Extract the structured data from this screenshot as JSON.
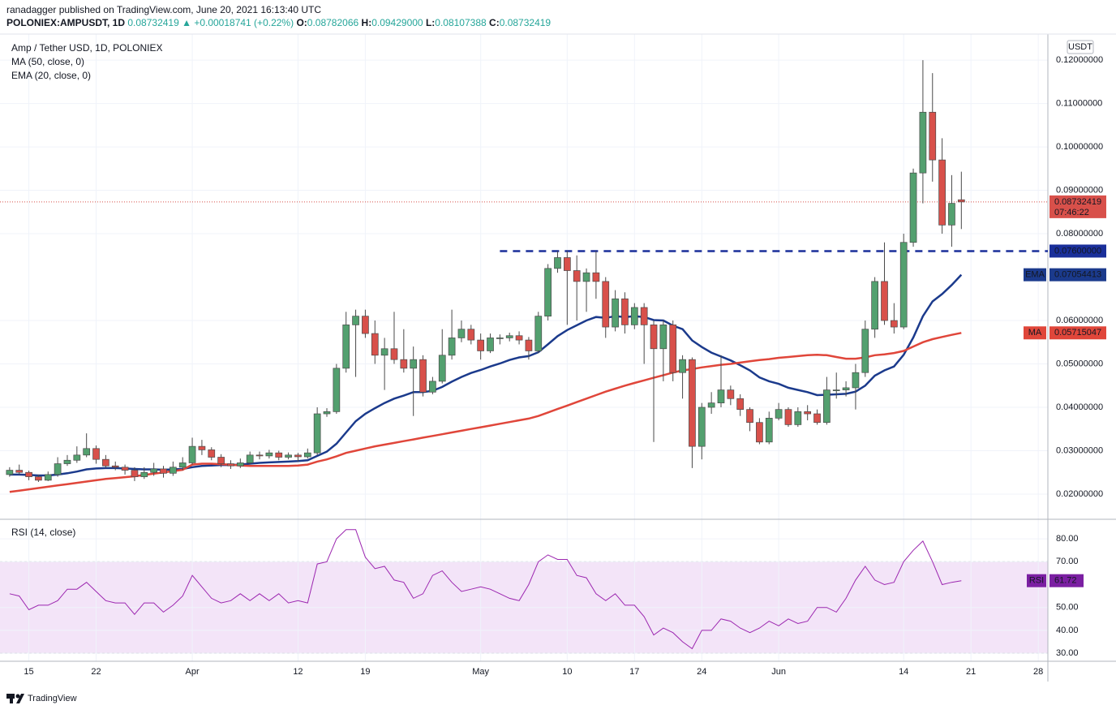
{
  "header": {
    "publisher": "ranadagger published on TradingView.com, June 20, 2021 16:13:40 UTC",
    "symbol": "POLONIEX:AMPUSDT, 1D",
    "last": "0.08732419",
    "change": "▲ +0.00018741 (+0.22%)",
    "ohlc": [
      "O:",
      "0.08782066",
      "H:",
      "0.09429000",
      "L:",
      "0.08107388",
      "C:",
      "0.08732419"
    ]
  },
  "footer": "TradingView",
  "chart_data": {
    "type": "candlestick",
    "title": "Amp / Tether USD, 1D, POLONIEX",
    "axis_unit": "USDT",
    "up_color": "#53a06f",
    "down_color": "#d8504a",
    "xlim": [
      "2021-03-12",
      "2021-06-29"
    ],
    "ylim": [
      0.0142,
      0.126
    ],
    "yticks": [
      {
        "value": 0.02,
        "label": "0.02000000"
      },
      {
        "value": 0.03,
        "label": "0.03000000"
      },
      {
        "value": 0.04,
        "label": "0.04000000"
      },
      {
        "value": 0.05,
        "label": "0.05000000"
      },
      {
        "value": 0.06,
        "label": "0.06000000"
      },
      {
        "value": 0.08,
        "label": "0.08000000"
      },
      {
        "value": 0.09,
        "label": "0.09000000"
      },
      {
        "value": 0.1,
        "label": "0.10000000"
      },
      {
        "value": 0.11,
        "label": "0.11000000"
      },
      {
        "value": 0.12,
        "label": "0.12000000"
      }
    ],
    "xticks": [
      {
        "value": "2021-03-15",
        "label": "15"
      },
      {
        "value": "2021-03-22",
        "label": "22"
      },
      {
        "value": "2021-04-01",
        "label": "Apr"
      },
      {
        "value": "2021-04-12",
        "label": "12"
      },
      {
        "value": "2021-04-19",
        "label": "19"
      },
      {
        "value": "2021-05-01",
        "label": "May"
      },
      {
        "value": "2021-05-10",
        "label": "10"
      },
      {
        "value": "2021-05-17",
        "label": "17"
      },
      {
        "value": "2021-05-24",
        "label": "24"
      },
      {
        "value": "2021-06-01",
        "label": "Jun"
      },
      {
        "value": "2021-06-14",
        "label": "14"
      },
      {
        "value": "2021-06-21",
        "label": "21"
      },
      {
        "value": "2021-06-28",
        "label": "28"
      }
    ],
    "grid": true,
    "countdown": "07:46:22",
    "level": {
      "value": 0.076,
      "label": "0.07600000",
      "start": "2021-05-03",
      "color": "#1a2f9a"
    },
    "dates": [
      "2021-03-13",
      "2021-03-14",
      "2021-03-15",
      "2021-03-16",
      "2021-03-17",
      "2021-03-18",
      "2021-03-19",
      "2021-03-20",
      "2021-03-21",
      "2021-03-22",
      "2021-03-23",
      "2021-03-24",
      "2021-03-25",
      "2021-03-26",
      "2021-03-27",
      "2021-03-28",
      "2021-03-29",
      "2021-03-30",
      "2021-03-31",
      "2021-04-01",
      "2021-04-02",
      "2021-04-03",
      "2021-04-04",
      "2021-04-05",
      "2021-04-06",
      "2021-04-07",
      "2021-04-08",
      "2021-04-09",
      "2021-04-10",
      "2021-04-11",
      "2021-04-12",
      "2021-04-13",
      "2021-04-14",
      "2021-04-15",
      "2021-04-16",
      "2021-04-17",
      "2021-04-18",
      "2021-04-19",
      "2021-04-20",
      "2021-04-21",
      "2021-04-22",
      "2021-04-23",
      "2021-04-24",
      "2021-04-25",
      "2021-04-26",
      "2021-04-27",
      "2021-04-28",
      "2021-04-29",
      "2021-04-30",
      "2021-05-01",
      "2021-05-02",
      "2021-05-03",
      "2021-05-04",
      "2021-05-05",
      "2021-05-06",
      "2021-05-07",
      "2021-05-08",
      "2021-05-09",
      "2021-05-10",
      "2021-05-11",
      "2021-05-12",
      "2021-05-13",
      "2021-05-14",
      "2021-05-15",
      "2021-05-16",
      "2021-05-17",
      "2021-05-18",
      "2021-05-19",
      "2021-05-20",
      "2021-05-21",
      "2021-05-22",
      "2021-05-23",
      "2021-05-24",
      "2021-05-25",
      "2021-05-26",
      "2021-05-27",
      "2021-05-28",
      "2021-05-29",
      "2021-05-30",
      "2021-05-31",
      "2021-06-01",
      "2021-06-02",
      "2021-06-03",
      "2021-06-04",
      "2021-06-05",
      "2021-06-06",
      "2021-06-07",
      "2021-06-08",
      "2021-06-09",
      "2021-06-10",
      "2021-06-11",
      "2021-06-12",
      "2021-06-13",
      "2021-06-14",
      "2021-06-15",
      "2021-06-16",
      "2021-06-17",
      "2021-06-18",
      "2021-06-19",
      "2021-06-20"
    ],
    "candles": [
      [
        0.0245,
        0.0262,
        0.024,
        0.0255
      ],
      [
        0.0255,
        0.0268,
        0.0245,
        0.025
      ],
      [
        0.025,
        0.0254,
        0.0232,
        0.024
      ],
      [
        0.024,
        0.0245,
        0.0228,
        0.0232
      ],
      [
        0.0232,
        0.0252,
        0.023,
        0.0245
      ],
      [
        0.0245,
        0.0285,
        0.024,
        0.027
      ],
      [
        0.027,
        0.029,
        0.0265,
        0.0278
      ],
      [
        0.0278,
        0.031,
        0.0272,
        0.029
      ],
      [
        0.029,
        0.034,
        0.0285,
        0.0305
      ],
      [
        0.0305,
        0.0312,
        0.027,
        0.028
      ],
      [
        0.028,
        0.029,
        0.026,
        0.0265
      ],
      [
        0.0265,
        0.0275,
        0.0255,
        0.0262
      ],
      [
        0.0262,
        0.0268,
        0.0245,
        0.0255
      ],
      [
        0.0255,
        0.0262,
        0.023,
        0.024
      ],
      [
        0.024,
        0.0262,
        0.0235,
        0.025
      ],
      [
        0.025,
        0.0272,
        0.0242,
        0.0258
      ],
      [
        0.0258,
        0.0265,
        0.0238,
        0.0248
      ],
      [
        0.0248,
        0.0275,
        0.0242,
        0.0262
      ],
      [
        0.0262,
        0.0285,
        0.0255,
        0.0272
      ],
      [
        0.0272,
        0.033,
        0.0268,
        0.031
      ],
      [
        0.031,
        0.0325,
        0.029,
        0.0302
      ],
      [
        0.0302,
        0.0308,
        0.0278,
        0.0285
      ],
      [
        0.0285,
        0.0292,
        0.0262,
        0.027
      ],
      [
        0.027,
        0.0278,
        0.0258,
        0.0265
      ],
      [
        0.0265,
        0.0282,
        0.026,
        0.0272
      ],
      [
        0.0272,
        0.0298,
        0.0268,
        0.029
      ],
      [
        0.029,
        0.0298,
        0.028,
        0.0288
      ],
      [
        0.0288,
        0.0302,
        0.0282,
        0.0295
      ],
      [
        0.0295,
        0.03,
        0.0278,
        0.0285
      ],
      [
        0.0285,
        0.0296,
        0.028,
        0.029
      ],
      [
        0.029,
        0.0295,
        0.0275,
        0.0286
      ],
      [
        0.0286,
        0.0305,
        0.0282,
        0.0295
      ],
      [
        0.0295,
        0.04,
        0.029,
        0.0385
      ],
      [
        0.0385,
        0.0398,
        0.0378,
        0.039
      ],
      [
        0.039,
        0.05,
        0.0385,
        0.049
      ],
      [
        0.049,
        0.062,
        0.048,
        0.059
      ],
      [
        0.059,
        0.0625,
        0.047,
        0.061
      ],
      [
        0.061,
        0.0625,
        0.056,
        0.057
      ],
      [
        0.057,
        0.06,
        0.05,
        0.052
      ],
      [
        0.052,
        0.056,
        0.044,
        0.0535
      ],
      [
        0.0535,
        0.062,
        0.05,
        0.051
      ],
      [
        0.051,
        0.058,
        0.048,
        0.049
      ],
      [
        0.049,
        0.054,
        0.038,
        0.051
      ],
      [
        0.051,
        0.052,
        0.0425,
        0.0435
      ],
      [
        0.0435,
        0.047,
        0.043,
        0.046
      ],
      [
        0.046,
        0.058,
        0.0455,
        0.052
      ],
      [
        0.052,
        0.0625,
        0.051,
        0.056
      ],
      [
        0.056,
        0.06,
        0.055,
        0.058
      ],
      [
        0.058,
        0.059,
        0.0545,
        0.0555
      ],
      [
        0.0555,
        0.057,
        0.051,
        0.053
      ],
      [
        0.053,
        0.057,
        0.0525,
        0.056
      ],
      [
        0.056,
        0.0568,
        0.0545,
        0.056
      ],
      [
        0.056,
        0.0572,
        0.0552,
        0.0565
      ],
      [
        0.0565,
        0.0575,
        0.0545,
        0.0555
      ],
      [
        0.0555,
        0.0562,
        0.051,
        0.053
      ],
      [
        0.053,
        0.062,
        0.0525,
        0.061
      ],
      [
        0.061,
        0.073,
        0.06,
        0.072
      ],
      [
        0.072,
        0.076,
        0.071,
        0.0745
      ],
      [
        0.0745,
        0.076,
        0.059,
        0.0715
      ],
      [
        0.0715,
        0.075,
        0.06,
        0.069
      ],
      [
        0.069,
        0.072,
        0.062,
        0.071
      ],
      [
        0.071,
        0.076,
        0.065,
        0.069
      ],
      [
        0.069,
        0.07,
        0.056,
        0.0585
      ],
      [
        0.0585,
        0.067,
        0.0575,
        0.065
      ],
      [
        0.065,
        0.0665,
        0.057,
        0.059
      ],
      [
        0.059,
        0.064,
        0.058,
        0.063
      ],
      [
        0.063,
        0.064,
        0.05,
        0.059
      ],
      [
        0.059,
        0.06,
        0.032,
        0.0535
      ],
      [
        0.0535,
        0.06,
        0.046,
        0.059
      ],
      [
        0.059,
        0.06,
        0.046,
        0.048
      ],
      [
        0.048,
        0.052,
        0.042,
        0.051
      ],
      [
        0.051,
        0.0515,
        0.026,
        0.031
      ],
      [
        0.031,
        0.041,
        0.028,
        0.04
      ],
      [
        0.04,
        0.0435,
        0.0385,
        0.041
      ],
      [
        0.041,
        0.052,
        0.04,
        0.044
      ],
      [
        0.044,
        0.045,
        0.0405,
        0.042
      ],
      [
        0.042,
        0.043,
        0.038,
        0.0395
      ],
      [
        0.0395,
        0.04,
        0.0345,
        0.0365
      ],
      [
        0.0365,
        0.0375,
        0.0315,
        0.032
      ],
      [
        0.032,
        0.039,
        0.0315,
        0.0375
      ],
      [
        0.0375,
        0.041,
        0.037,
        0.0395
      ],
      [
        0.0395,
        0.04,
        0.0355,
        0.036
      ],
      [
        0.036,
        0.04,
        0.0355,
        0.039
      ],
      [
        0.039,
        0.0405,
        0.037,
        0.0385
      ],
      [
        0.0385,
        0.0395,
        0.036,
        0.0365
      ],
      [
        0.0365,
        0.047,
        0.036,
        0.044
      ],
      [
        0.044,
        0.048,
        0.042,
        0.044
      ],
      [
        0.044,
        0.046,
        0.0425,
        0.0445
      ],
      [
        0.0445,
        0.05,
        0.0395,
        0.048
      ],
      [
        0.048,
        0.06,
        0.047,
        0.058
      ],
      [
        0.058,
        0.07,
        0.056,
        0.069
      ],
      [
        0.069,
        0.078,
        0.059,
        0.06
      ],
      [
        0.06,
        0.064,
        0.057,
        0.0585
      ],
      [
        0.0585,
        0.08,
        0.058,
        0.078
      ],
      [
        0.078,
        0.095,
        0.077,
        0.094
      ],
      [
        0.094,
        0.12,
        0.087,
        0.108
      ],
      [
        0.108,
        0.117,
        0.092,
        0.097
      ],
      [
        0.097,
        0.102,
        0.08,
        0.082
      ],
      [
        0.082,
        0.0935,
        0.077,
        0.087
      ],
      [
        0.08782066,
        0.09429,
        0.08107388,
        0.08732419
      ]
    ],
    "series": [
      {
        "name": "EMA",
        "legend": "EMA (20, close, 0)",
        "color": "#1b3a8c",
        "values": [
          0.0245,
          0.0245,
          0.0244,
          0.0243,
          0.0243,
          0.0245,
          0.0248,
          0.0252,
          0.0257,
          0.0259,
          0.026,
          0.026,
          0.0259,
          0.0258,
          0.0257,
          0.0257,
          0.0256,
          0.0257,
          0.0258,
          0.0262,
          0.0265,
          0.0266,
          0.0267,
          0.0267,
          0.0268,
          0.027,
          0.0272,
          0.0273,
          0.0274,
          0.0275,
          0.0276,
          0.0278,
          0.0288,
          0.0298,
          0.0316,
          0.0342,
          0.0368,
          0.0385,
          0.0398,
          0.041,
          0.042,
          0.0427,
          0.0435,
          0.0435,
          0.0438,
          0.0447,
          0.0459,
          0.047,
          0.0479,
          0.0486,
          0.0494,
          0.0501,
          0.0509,
          0.0515,
          0.0518,
          0.0527,
          0.0545,
          0.0564,
          0.0578,
          0.0589,
          0.06,
          0.0608,
          0.0606,
          0.061,
          0.0608,
          0.061,
          0.0608,
          0.0601,
          0.06,
          0.0588,
          0.058,
          0.0554,
          0.0539,
          0.0526,
          0.0517,
          0.0508,
          0.0497,
          0.0485,
          0.0469,
          0.046,
          0.0454,
          0.0445,
          0.044,
          0.0435,
          0.0428,
          0.0429,
          0.043,
          0.0431,
          0.0436,
          0.045,
          0.0473,
          0.0485,
          0.0494,
          0.0521,
          0.0561,
          0.061,
          0.0644,
          0.0661,
          0.0682,
          0.07054413
        ]
      },
      {
        "name": "MA",
        "legend": "MA (50, close, 0)",
        "color": "#e0463a",
        "values": [
          0.0205,
          0.0208,
          0.0211,
          0.0214,
          0.0217,
          0.022,
          0.0223,
          0.0226,
          0.0229,
          0.0232,
          0.0235,
          0.0237,
          0.0239,
          0.0241,
          0.0244,
          0.0247,
          0.025,
          0.0253,
          0.0256,
          0.0268,
          0.027,
          0.027,
          0.0269,
          0.0268,
          0.0266,
          0.0265,
          0.0265,
          0.0265,
          0.0265,
          0.0265,
          0.0266,
          0.0268,
          0.0275,
          0.028,
          0.0287,
          0.0295,
          0.03,
          0.0305,
          0.031,
          0.0314,
          0.0318,
          0.0322,
          0.0326,
          0.033,
          0.0334,
          0.0338,
          0.0342,
          0.0346,
          0.035,
          0.0354,
          0.0358,
          0.0362,
          0.0366,
          0.037,
          0.0374,
          0.038,
          0.0388,
          0.0396,
          0.0404,
          0.0412,
          0.042,
          0.0428,
          0.0436,
          0.0443,
          0.045,
          0.0456,
          0.0462,
          0.0468,
          0.0474,
          0.048,
          0.0485,
          0.0488,
          0.0492,
          0.0495,
          0.0498,
          0.05,
          0.0503,
          0.0506,
          0.0509,
          0.0511,
          0.0514,
          0.0516,
          0.0518,
          0.052,
          0.0521,
          0.052,
          0.0516,
          0.0512,
          0.0512,
          0.0515,
          0.052,
          0.0522,
          0.0525,
          0.053,
          0.054,
          0.055,
          0.0557,
          0.0562,
          0.0567,
          0.05715047
        ]
      }
    ],
    "rsi": {
      "title": "RSI (14, close)",
      "name": "RSI",
      "color": "#9c27b0",
      "band": [
        30,
        70
      ],
      "band_color": "#f3e4f8",
      "ylim": [
        26.5,
        88.2
      ],
      "yticks": [
        {
          "value": 30,
          "label": "30.00"
        },
        {
          "value": 40,
          "label": "40.00"
        },
        {
          "value": 50,
          "label": "50.00"
        },
        {
          "value": 70,
          "label": "70.00"
        },
        {
          "value": 80,
          "label": "80.00"
        }
      ],
      "values": [
        56,
        55,
        49,
        51,
        51,
        53,
        58,
        58,
        61,
        57,
        53,
        52,
        52,
        47,
        52,
        52,
        48,
        51,
        55,
        64,
        59,
        54,
        52,
        53,
        56,
        53,
        56,
        53,
        56,
        52,
        53,
        52,
        69,
        70,
        80,
        84,
        84,
        72,
        67,
        68,
        62,
        61,
        54,
        56,
        64,
        66,
        61,
        57,
        58,
        59,
        58,
        56,
        54,
        53,
        60,
        70,
        73,
        71,
        71,
        64,
        63,
        56,
        53,
        56,
        51,
        51,
        46,
        38,
        41,
        39,
        35,
        32,
        40,
        40,
        45,
        44,
        41,
        39,
        41,
        44,
        42,
        45,
        43,
        44,
        50,
        50,
        48,
        54,
        62,
        68,
        62,
        60,
        61,
        70,
        75,
        79,
        70,
        60,
        61,
        61.72
      ]
    }
  }
}
